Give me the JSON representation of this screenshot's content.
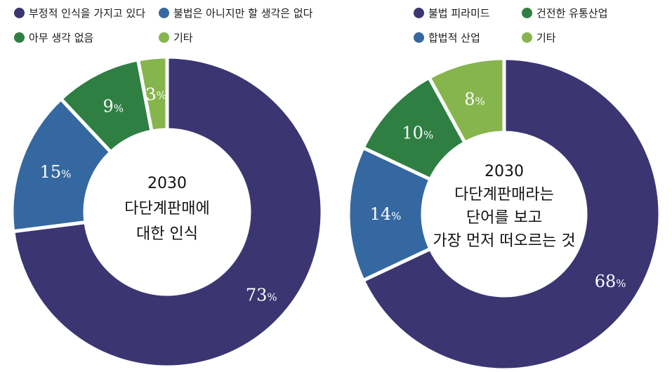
{
  "colors": {
    "dark_purple": "#3b3572",
    "steel_blue": "#3568a0",
    "green": "#2f7f43",
    "light_green": "#86b54d"
  },
  "chart_data": [
    {
      "type": "pie",
      "style": "donut",
      "title": "",
      "center_text": [
        "2030",
        "다단계판매에",
        "대한 인식"
      ],
      "legend_placement": "top",
      "slices": [
        {
          "label": "부정적 인식을 가지고 있다",
          "value": 73,
          "color": "#3b3572"
        },
        {
          "label": "불법은 아니지만 할 생각은 없다",
          "value": 15,
          "color": "#3568a0"
        },
        {
          "label": "아무 생각 없음",
          "value": 9,
          "color": "#2f7f43"
        },
        {
          "label": "기타",
          "value": 3,
          "color": "#86b54d"
        }
      ]
    },
    {
      "type": "pie",
      "style": "donut",
      "title": "",
      "center_text": [
        "2030",
        "다단계판매라는",
        "단어를 보고",
        "가장 먼저 떠오르는 것"
      ],
      "legend_placement": "top",
      "slices": [
        {
          "label": "불법 피라미드",
          "value": 68,
          "color": "#3b3572"
        },
        {
          "label": "합법적 산업",
          "value": 14,
          "color": "#3568a0"
        },
        {
          "label": "건전한 유통산업",
          "value": 10,
          "color": "#2f7f43"
        },
        {
          "label": "기타",
          "value": 8,
          "color": "#86b54d"
        }
      ]
    }
  ],
  "percent_sign": "%"
}
